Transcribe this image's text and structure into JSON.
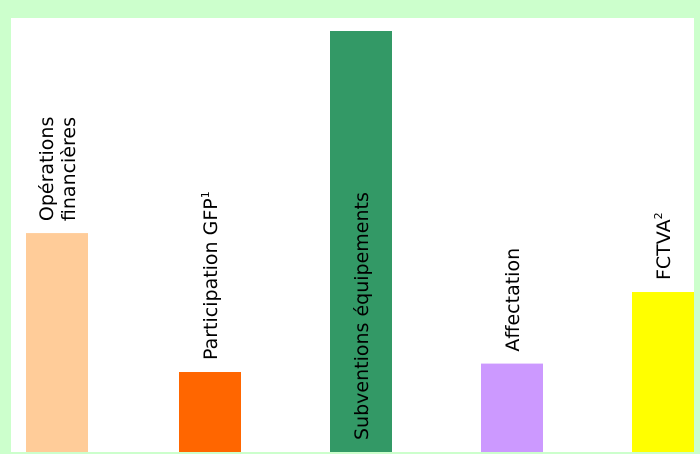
{
  "chart_data": {
    "type": "bar",
    "title": "",
    "xlabel": "",
    "ylabel": "",
    "ylim": [
      0,
      100
    ],
    "grid": false,
    "legend": "none",
    "categories": [
      {
        "lines": [
          "Opérations",
          "financières"
        ],
        "sup": "",
        "label_position": "above-bar"
      },
      {
        "lines": [
          "Participation GFP"
        ],
        "sup": "1",
        "label_position": "above-bar"
      },
      {
        "lines": [
          "Subventions équipements"
        ],
        "sup": "",
        "label_position": "inside-bar"
      },
      {
        "lines": [
          "Affectation"
        ],
        "sup": "",
        "label_position": "above-bar"
      },
      {
        "lines": [
          "FCTVA"
        ],
        "sup": "2",
        "label_position": "above-bar"
      }
    ],
    "values": [
      52,
      19,
      100,
      21,
      38
    ],
    "colors": [
      "#ffcc99",
      "#ff6600",
      "#339966",
      "#cc99ff",
      "#ffff00"
    ],
    "label_colors": [
      "#000000",
      "#000000",
      "#ffffff",
      "#000000",
      "#000000"
    ],
    "background_color": "#ccffcc",
    "plot_background_color": "#ffffff",
    "plot_border_color": "#ccffcc"
  }
}
